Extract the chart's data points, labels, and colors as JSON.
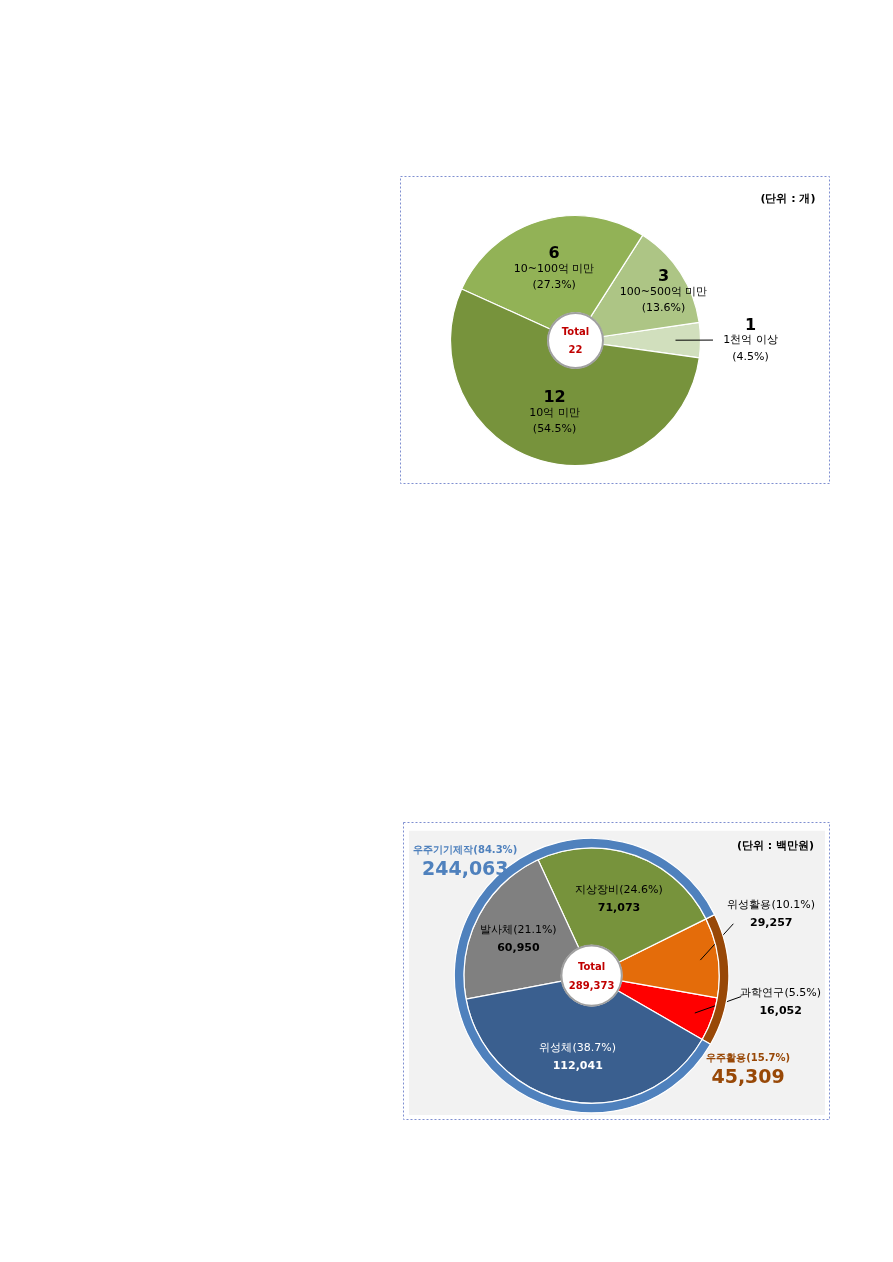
{
  "chart_data": [
    {
      "type": "donut",
      "categories": [
        "1천억 이상\n(4.5%)",
        "100~500억 미만\n(13.6%)",
        "10~100억 미만\n(27.3%)",
        "10억 미만\n(54.5%)"
      ],
      "values": [
        1,
        3,
        6,
        12
      ],
      "colors": [
        "#d1dfbd",
        "#adc585",
        "#92b256",
        "#77933c"
      ],
      "data_labels": true,
      "legend": false,
      "annotations": [
        "(단위 : 개)",
        "Total\n22"
      ]
    },
    {
      "type": "donut",
      "categories": [
        "과학연구(5.5%)",
        "위성활용(10.1%)",
        "지상장비(24.6%)",
        "발사체(21.1%)",
        "위성체(38.7%)"
      ],
      "legend": false,
      "series": [
        {
          "values": [
            16052,
            29257,
            71073,
            60950,
            112041
          ],
          "colors": [
            "#ff0000",
            "#e46c0a",
            "#77933c",
            "#808080",
            "#3a5f8f"
          ],
          "value_labels": [
            "16,052",
            "29,257",
            "71,073",
            "60,950",
            "112,041"
          ]
        },
        {
          "values": [
            45309,
            null,
            244063,
            null,
            null
          ],
          "colors": [
            "#984807",
            null,
            "#4f81bd",
            null,
            null
          ],
          "value_labels": [
            "45,309",
            null,
            "244,063",
            null,
            null
          ]
        }
      ],
      "annotations": [
        "(단위 : 백만원)",
        "Total\n289,373",
        "우주활용(15.7%)",
        "우주기기제작(84.3%)"
      ]
    }
  ]
}
